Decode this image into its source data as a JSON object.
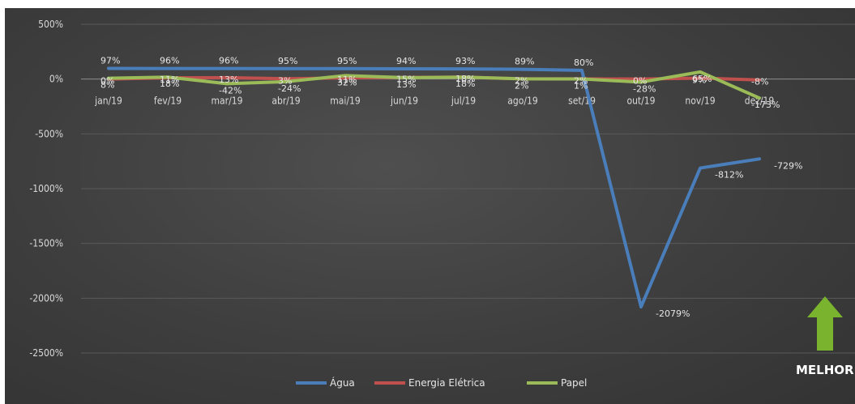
{
  "chart_data": {
    "type": "line",
    "categories": [
      "jan/19",
      "fev/19",
      "mar/19",
      "abr/19",
      "mai/19",
      "jun/19",
      "jul/19",
      "ago/19",
      "set/19",
      "out/19",
      "nov/19",
      "dez/19"
    ],
    "ylim": [
      -2500,
      500
    ],
    "yticks": [
      500,
      0,
      -500,
      -1000,
      -1500,
      -2000,
      -2500
    ],
    "ytick_labels": [
      "500%",
      "0%",
      "-500%",
      "-1000%",
      "-1500%",
      "-2000%",
      "-2500%"
    ],
    "grid": true,
    "legend_position": "bottom",
    "series": [
      {
        "name": "Água",
        "color": "#4a7ebb",
        "values": [
          97,
          96,
          96,
          95,
          95,
          94,
          93,
          89,
          80,
          -2079,
          -812,
          -729
        ],
        "labels": [
          "97%",
          "96%",
          "96%",
          "95%",
          "95%",
          "94%",
          "93%",
          "89%",
          "80%",
          "-2079%",
          "-812%",
          "-729%"
        ]
      },
      {
        "name": "Energia Elétrica",
        "color": "#c0504d",
        "values": [
          0,
          11,
          13,
          3,
          11,
          15,
          18,
          2,
          2,
          0,
          9,
          -8
        ],
        "labels": [
          "0%",
          "11%",
          "13%",
          "3%",
          "11%",
          "15%",
          "18%",
          "2%",
          "2%",
          "0%",
          "9%",
          "-8%"
        ]
      },
      {
        "name": "Papel",
        "color": "#9bbb59",
        "values": [
          8,
          18,
          -42,
          -24,
          32,
          13,
          18,
          2,
          1,
          -28,
          65,
          -173
        ],
        "labels": [
          "8%",
          "18%",
          "-42%",
          "-24%",
          "32%",
          "13%",
          "18%",
          "2%",
          "1%",
          "-28%",
          "65%",
          "-173%"
        ]
      }
    ]
  },
  "annotation": {
    "text": "MELHOR",
    "arrow_color": "#7ab32e"
  }
}
